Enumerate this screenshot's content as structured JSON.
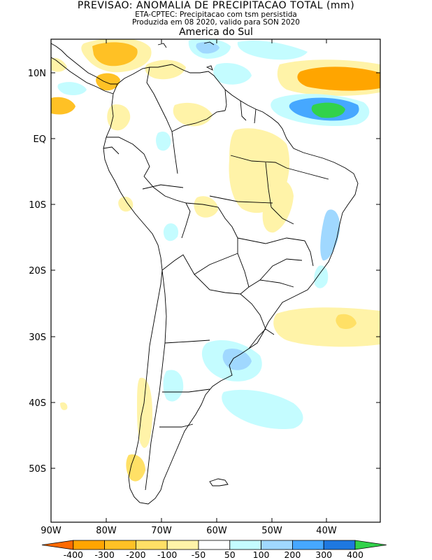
{
  "title": "PREVISAO: ANOMALIA DE PRECIPITACAO TOTAL (mm)",
  "subtitle1": "ETA-CPTEC: Precipitacao com tsm persistida",
  "subtitle2": "Produzida em 08 2020, valido para SON 2020",
  "region": "America do Sul",
  "lat_labels": [
    "10N",
    "EQ",
    "10S",
    "20S",
    "30S",
    "40S",
    "50S"
  ],
  "lon_labels": [
    "90W",
    "80W",
    "70W",
    "60W",
    "50W",
    "40W"
  ],
  "legend": {
    "labels": [
      "-400",
      "-300",
      "-200",
      "-100",
      "-50",
      "50",
      "100",
      "200",
      "300",
      "400"
    ],
    "colors": [
      "#ff6a00",
      "#ffa500",
      "#ffc125",
      "#ffe066",
      "#fff3a8",
      "#ffffff",
      "#c4fcff",
      "#a0d8ff",
      "#46a8ff",
      "#1e78e0",
      "#32d24b"
    ]
  }
}
